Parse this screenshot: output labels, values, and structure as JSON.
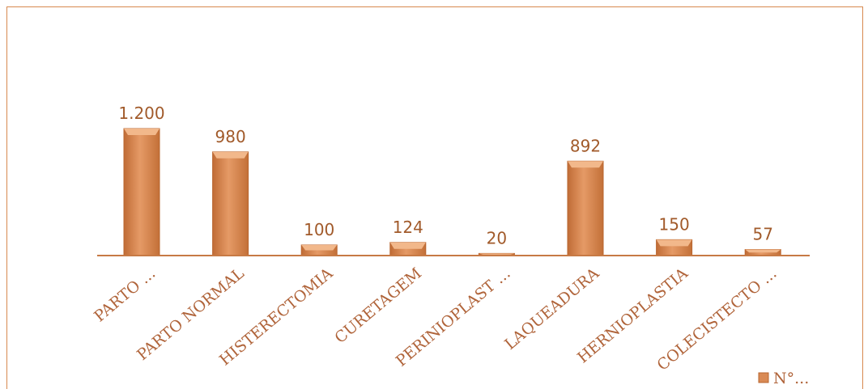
{
  "chart_data": {
    "type": "bar",
    "categories": [
      "PARTO ...",
      "PARTO NORMAL",
      "HISTERECTOMIA",
      "CURETAGEM",
      "PERINIOPLAST ...",
      "LAQUEADURA",
      "HERNIOPLASTIA",
      "COLECISTECTO ..."
    ],
    "value_labels": [
      "1.200",
      "980",
      "100",
      "124",
      "20",
      "892",
      "150",
      "57"
    ],
    "series": [
      {
        "name": "N°...",
        "values": [
          1200,
          980,
          100,
          124,
          20,
          892,
          150,
          57
        ]
      }
    ],
    "title": "",
    "xlabel": "",
    "ylabel": "",
    "ylim": [
      0,
      1200
    ],
    "grid": false,
    "legend": "bottom-right",
    "colors": {
      "bar": "#d98a55",
      "bar_light": "#f2b88b",
      "bar_dark": "#b8652f",
      "axis": "#c77a45",
      "text": "#a15a2a"
    }
  }
}
